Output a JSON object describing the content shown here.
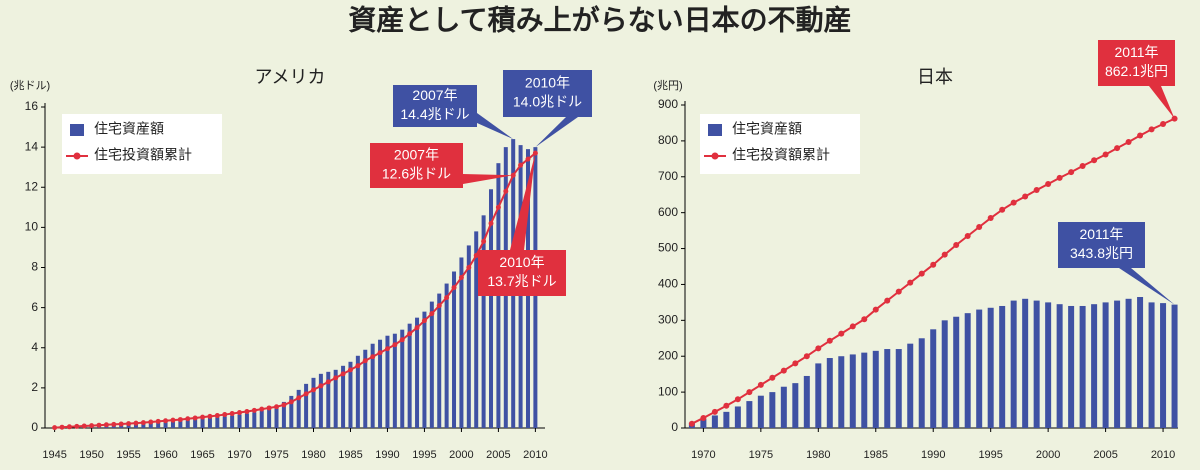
{
  "title": "資産として積み上がらない日本の不動産",
  "chart_data": [
    {
      "type": "combo",
      "title": "アメリカ",
      "ylabel": "(兆ドル)",
      "x": [
        1945,
        1946,
        1947,
        1948,
        1949,
        1950,
        1951,
        1952,
        1953,
        1954,
        1955,
        1956,
        1957,
        1958,
        1959,
        1960,
        1961,
        1962,
        1963,
        1964,
        1965,
        1966,
        1967,
        1968,
        1969,
        1970,
        1971,
        1972,
        1973,
        1974,
        1975,
        1976,
        1977,
        1978,
        1979,
        1980,
        1981,
        1982,
        1983,
        1984,
        1985,
        1986,
        1987,
        1988,
        1989,
        1990,
        1991,
        1992,
        1993,
        1994,
        1995,
        1996,
        1997,
        1998,
        1999,
        2000,
        2001,
        2002,
        2003,
        2004,
        2005,
        2006,
        2007,
        2008,
        2009,
        2010
      ],
      "xlim": [
        1943.7,
        2011.3
      ],
      "xticks": [
        1945,
        1950,
        1955,
        1960,
        1965,
        1970,
        1975,
        1980,
        1985,
        1990,
        1995,
        2000,
        2005,
        2010
      ],
      "ylim": [
        0,
        16
      ],
      "yticks": [
        0,
        2,
        4,
        6,
        8,
        10,
        12,
        14,
        16
      ],
      "series": [
        {
          "name": "住宅資産額",
          "mark": "bar",
          "color": "#3f51a3",
          "values": [
            0.05,
            0.07,
            0.09,
            0.1,
            0.11,
            0.13,
            0.15,
            0.17,
            0.19,
            0.21,
            0.23,
            0.25,
            0.27,
            0.29,
            0.31,
            0.33,
            0.36,
            0.38,
            0.41,
            0.44,
            0.47,
            0.5,
            0.54,
            0.58,
            0.62,
            0.67,
            0.72,
            0.78,
            0.86,
            0.95,
            1.05,
            1.3,
            1.6,
            1.9,
            2.2,
            2.5,
            2.7,
            2.8,
            2.9,
            3.1,
            3.3,
            3.6,
            3.9,
            4.2,
            4.4,
            4.6,
            4.7,
            4.9,
            5.2,
            5.5,
            5.8,
            6.3,
            6.7,
            7.2,
            7.8,
            8.5,
            9.1,
            9.8,
            10.6,
            11.9,
            13.2,
            14.0,
            14.4,
            14.1,
            13.9,
            14.0
          ]
        },
        {
          "name": "住宅投資額累計",
          "mark": "line",
          "color": "#e0303e",
          "values": [
            0.02,
            0.04,
            0.06,
            0.08,
            0.1,
            0.12,
            0.14,
            0.16,
            0.18,
            0.2,
            0.22,
            0.24,
            0.27,
            0.3,
            0.33,
            0.36,
            0.39,
            0.42,
            0.46,
            0.5,
            0.54,
            0.58,
            0.62,
            0.67,
            0.72,
            0.77,
            0.82,
            0.88,
            0.94,
            1.0,
            1.06,
            1.15,
            1.3,
            1.5,
            1.7,
            1.9,
            2.1,
            2.3,
            2.5,
            2.7,
            2.9,
            3.1,
            3.35,
            3.55,
            3.75,
            3.95,
            4.15,
            4.4,
            4.7,
            5.0,
            5.35,
            5.7,
            6.1,
            6.5,
            7.0,
            7.5,
            8.0,
            8.6,
            9.3,
            10.2,
            11.0,
            11.8,
            12.6,
            13.1,
            13.4,
            13.7
          ]
        }
      ],
      "annotations": [
        {
          "lines": [
            "2007年",
            "14.4兆ドル"
          ],
          "color": "#3f51a3"
        },
        {
          "lines": [
            "2010年",
            "14.0兆ドル"
          ],
          "color": "#3f51a3"
        },
        {
          "lines": [
            "2007年",
            "12.6兆ドル"
          ],
          "color": "#e0303e"
        },
        {
          "lines": [
            "2010年",
            "13.7兆ドル"
          ],
          "color": "#e0303e"
        }
      ]
    },
    {
      "type": "combo",
      "title": "日本",
      "ylabel": "(兆円)",
      "x": [
        1969,
        1970,
        1971,
        1972,
        1973,
        1974,
        1975,
        1976,
        1977,
        1978,
        1979,
        1980,
        1981,
        1982,
        1983,
        1984,
        1985,
        1986,
        1987,
        1988,
        1989,
        1990,
        1991,
        1992,
        1993,
        1994,
        1995,
        1996,
        1997,
        1998,
        1999,
        2000,
        2001,
        2002,
        2003,
        2004,
        2005,
        2006,
        2007,
        2008,
        2009,
        2010,
        2011
      ],
      "xlim": [
        1968.4,
        2011.3
      ],
      "xticks": [
        1970,
        1975,
        1980,
        1985,
        1990,
        1995,
        2000,
        2005,
        2010
      ],
      "ylim": [
        0,
        900
      ],
      "yticks": [
        0,
        100,
        200,
        300,
        400,
        500,
        600,
        700,
        800,
        900
      ],
      "series": [
        {
          "name": "住宅資産額",
          "mark": "bar",
          "color": "#3f51a3",
          "values": [
            15,
            25,
            35,
            45,
            60,
            75,
            90,
            100,
            115,
            125,
            145,
            180,
            195,
            200,
            205,
            210,
            215,
            220,
            220,
            235,
            250,
            275,
            300,
            310,
            320,
            330,
            335,
            340,
            355,
            360,
            355,
            350,
            345,
            340,
            340,
            345,
            350,
            355,
            360,
            365,
            350,
            348,
            343.8
          ]
        },
        {
          "name": "住宅投資額累計",
          "mark": "line",
          "color": "#e0303e",
          "values": [
            12,
            28,
            45,
            62,
            80,
            100,
            120,
            140,
            160,
            180,
            200,
            222,
            243,
            263,
            283,
            303,
            330,
            355,
            380,
            405,
            430,
            455,
            483,
            510,
            535,
            560,
            585,
            608,
            628,
            645,
            663,
            680,
            697,
            713,
            730,
            746,
            762,
            780,
            797,
            815,
            832,
            847,
            862.1
          ]
        }
      ],
      "annotations": [
        {
          "lines": [
            "2011年",
            "862.1兆円"
          ],
          "color": "#e0303e"
        },
        {
          "lines": [
            "2011年",
            "343.8兆円"
          ],
          "color": "#3f51a3"
        }
      ]
    }
  ]
}
